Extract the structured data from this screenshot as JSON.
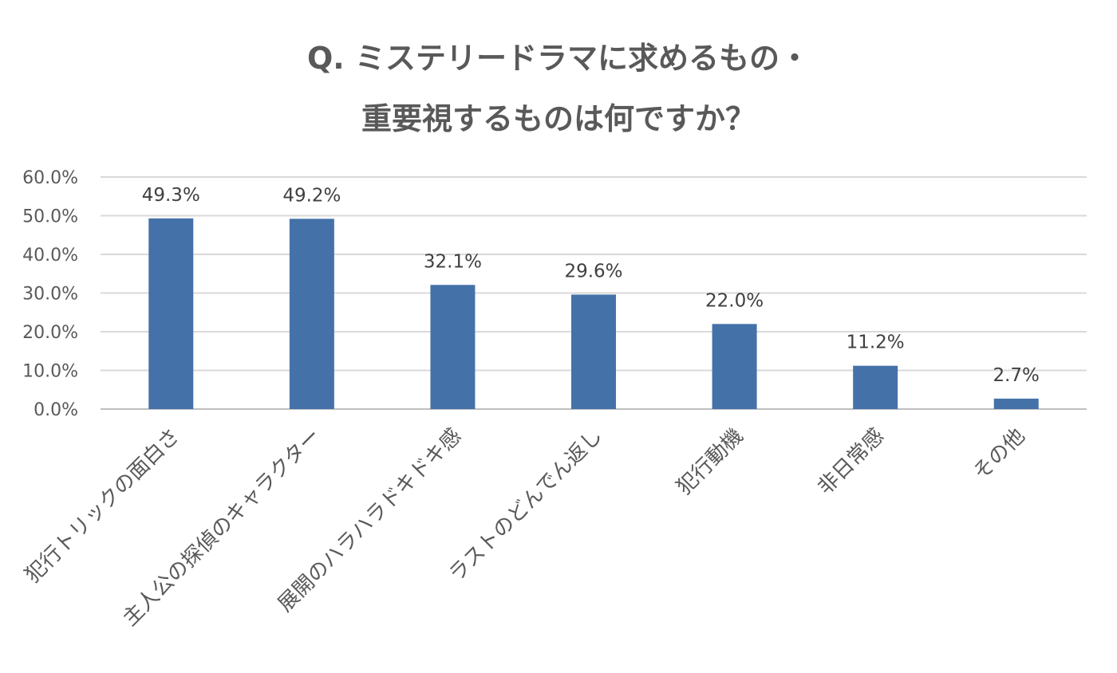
{
  "chart_data": {
    "type": "bar",
    "title": [
      "Q. ミステリードラマに求めるもの・",
      "重要視するものは何ですか？"
    ],
    "categories": [
      "犯行トリックの面白さ",
      "主人公の探偵のキャラクター",
      "展開のハラハラドキドキ感",
      "ラストのどんでん返し",
      "犯行動機",
      "非日常感",
      "その他"
    ],
    "values": [
      49.3,
      49.2,
      32.1,
      29.6,
      22.0,
      11.2,
      2.7
    ],
    "data_labels": [
      "49.3%",
      "49.2%",
      "32.1%",
      "29.6%",
      "22.0%",
      "11.2%",
      "2.7%"
    ],
    "yticks": [
      "0.0%",
      "10.0%",
      "20.0%",
      "30.0%",
      "40.0%",
      "50.0%",
      "60.0%"
    ],
    "ylim": [
      0,
      60
    ],
    "grid": true,
    "legend": "none",
    "bar_color": "#4472a8"
  }
}
